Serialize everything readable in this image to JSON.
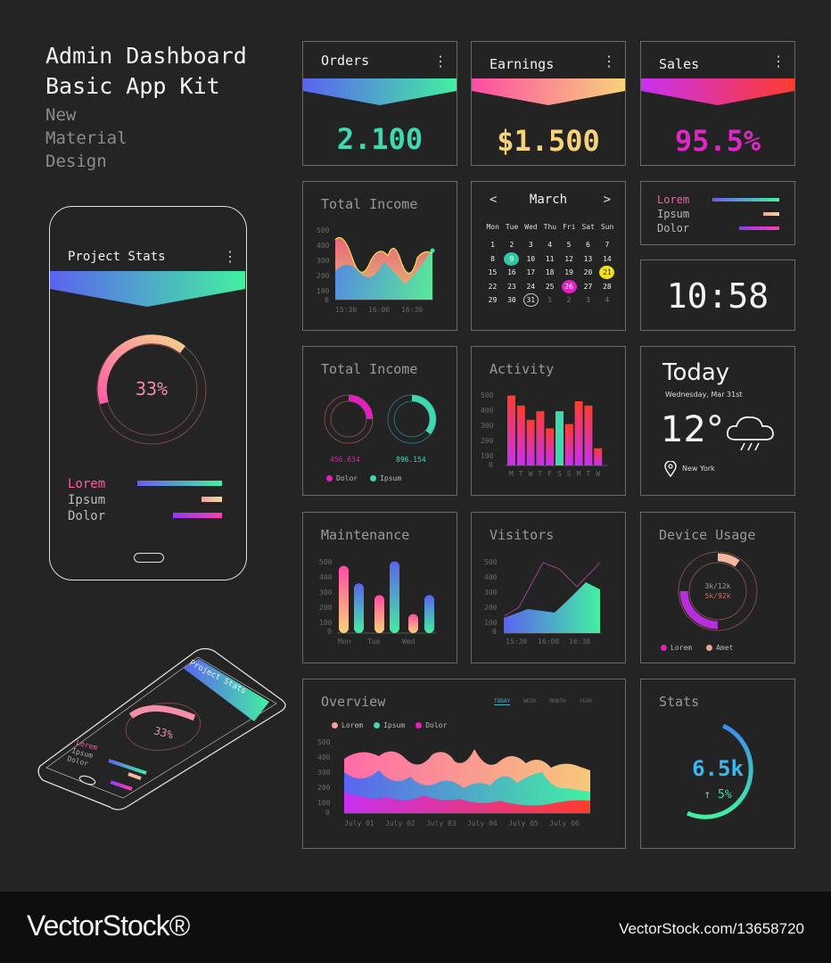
{
  "kit": {
    "title_line1": "Admin Dashboard",
    "title_line2": "Basic App Kit",
    "sub1": "New",
    "sub2": "Material",
    "sub3": "Design"
  },
  "phone": {
    "title": "Project Stats",
    "percent": "33%",
    "progress": 0.33,
    "legend": [
      "Lorem",
      "Ipsum",
      "Dolor"
    ]
  },
  "iso_phone": {
    "title": "Project Stats",
    "percent": "33%",
    "legend": [
      "Lorem",
      "Ipsum",
      "Dolor"
    ]
  },
  "orders": {
    "title": "Orders",
    "value": "2.100",
    "color": "#3fd8b0"
  },
  "earnings": {
    "title": "Earnings",
    "value": "$1.500",
    "color": "#f6d37a"
  },
  "sales": {
    "title": "Sales",
    "value": "95.5%",
    "color": "#e025c9"
  },
  "total_income_1": {
    "title": "Total Income",
    "y_ticks": [
      "500",
      "400",
      "300",
      "200",
      "100",
      "0"
    ],
    "x_ticks": [
      "15:30",
      "16:00",
      "16:30"
    ]
  },
  "calendar": {
    "month": "March",
    "prev": "<",
    "next": ">",
    "weekdays": [
      "Mon",
      "Tue",
      "Wed",
      "Thu",
      "Fri",
      "Sat",
      "Sun"
    ],
    "rows": [
      [
        "1",
        "2",
        "3",
        "4",
        "5",
        "6",
        "7"
      ],
      [
        "8",
        "9",
        "10",
        "11",
        "12",
        "13",
        "14"
      ],
      [
        "15",
        "16",
        "17",
        "18",
        "19",
        "20",
        "21"
      ],
      [
        "22",
        "23",
        "24",
        "25",
        "26",
        "27",
        "28"
      ],
      [
        "29",
        "30",
        "31",
        "1",
        "2",
        "3",
        "4"
      ]
    ],
    "highlights": {
      "9": "#2ec9a4",
      "21": "#f2e11a",
      "26": "#e021c0"
    },
    "today": "31"
  },
  "legend_card": {
    "items": [
      "Lorem",
      "Ipsum",
      "Dolor"
    ],
    "fractions": [
      1.0,
      0.25,
      0.6
    ]
  },
  "clock": {
    "time": "10:58"
  },
  "total_income_2": {
    "title": "Total Income",
    "values": [
      "456.634",
      "896.154"
    ],
    "legend": [
      "Dolor",
      "Ipsum"
    ],
    "fractions": [
      0.25,
      0.35
    ]
  },
  "activity": {
    "title": "Activity",
    "y_ticks": [
      "500",
      "400",
      "300",
      "200",
      "100",
      "0"
    ],
    "x_ticks": [
      "M",
      "T",
      "W",
      "T",
      "F",
      "S",
      "S",
      "M",
      "T",
      "W"
    ]
  },
  "weather": {
    "heading": "Today",
    "date": "Wednesday, Mar 31st",
    "temp": "12°",
    "location": "New York"
  },
  "maintenance": {
    "title": "Maintenance",
    "y_ticks": [
      "500",
      "400",
      "300",
      "200",
      "100",
      "0"
    ],
    "x_ticks": [
      "Mon",
      "Tue",
      "Wed"
    ]
  },
  "visitors": {
    "title": "Visitors",
    "y_ticks": [
      "500",
      "400",
      "300",
      "200",
      "100",
      "0"
    ],
    "x_ticks": [
      "15:30",
      "16:00",
      "16:30"
    ]
  },
  "device_usage": {
    "title": "Device Usage",
    "line1": "3k/12k",
    "line2": "5k/92k",
    "legend": [
      "Lorem",
      "Amet"
    ]
  },
  "overview": {
    "title": "Overview",
    "tabs": [
      "TODAY",
      "WEEK",
      "MONTH",
      "YEAR"
    ],
    "legend": [
      "Lorem",
      "Ipsum",
      "Dolor"
    ],
    "y_ticks": [
      "500",
      "400",
      "300",
      "200",
      "100",
      "0"
    ],
    "x_ticks": [
      "July 01",
      "July 02",
      "July 03",
      "July 04",
      "July 05",
      "July 06"
    ]
  },
  "stats": {
    "title": "Stats",
    "value": "6.5k",
    "change": "↑ 5%",
    "progress": 0.6
  },
  "footer": {
    "brand": "VectorStock®",
    "id": "VectorStock.com/13658720"
  },
  "chart_data": [
    {
      "type": "area",
      "title": "Total Income",
      "ylim": [
        0,
        500
      ],
      "x": [
        "15:30",
        "16:00",
        "16:30"
      ]
    },
    {
      "type": "bar",
      "title": "Activity",
      "categories": [
        "M",
        "T",
        "W",
        "T",
        "F",
        "S",
        "S",
        "M",
        "T",
        "W"
      ],
      "values": [
        490,
        420,
        320,
        380,
        260,
        380,
        290,
        450,
        420,
        120
      ],
      "ylim": [
        0,
        500
      ]
    },
    {
      "type": "bar",
      "title": "Maintenance",
      "values": [
        460,
        340,
        260,
        490,
        130,
        260
      ],
      "ylim": [
        0,
        500
      ]
    },
    {
      "type": "area",
      "title": "Visitors",
      "ylim": [
        0,
        500
      ],
      "x": [
        "15:30",
        "16:00",
        "16:30"
      ]
    },
    {
      "type": "area",
      "title": "Overview",
      "ylim": [
        0,
        500
      ],
      "x": [
        "July 01",
        "July 02",
        "July 03",
        "July 04",
        "July 05",
        "July 06"
      ]
    }
  ]
}
